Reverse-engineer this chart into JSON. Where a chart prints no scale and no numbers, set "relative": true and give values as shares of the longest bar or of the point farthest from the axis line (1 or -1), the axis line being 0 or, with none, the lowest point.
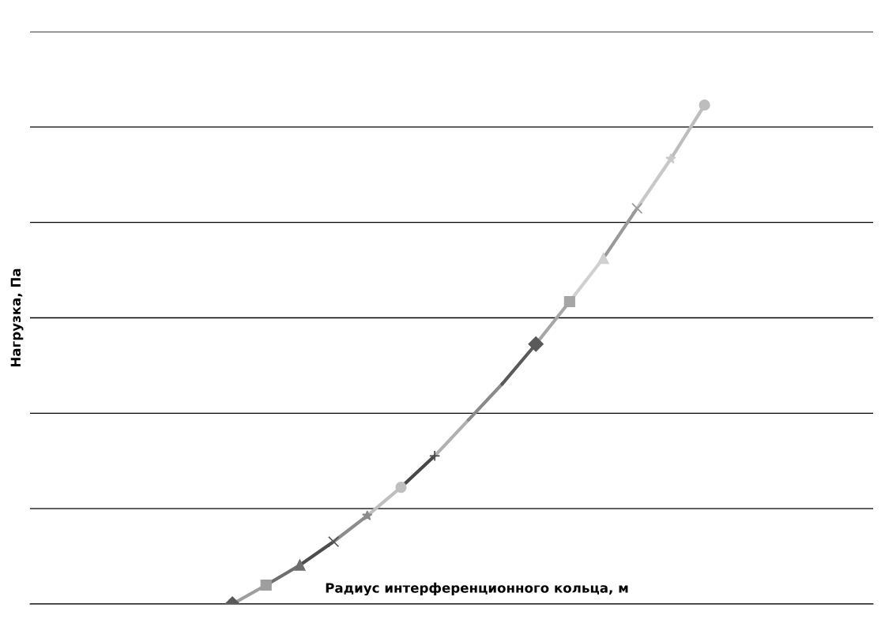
{
  "chart_data": {
    "type": "line",
    "relative": true,
    "xlabel": "Радиус интерференционного кольца, м",
    "ylabel": "Нагрузка, Па",
    "categories": [
      null,
      null,
      null,
      null,
      null,
      null,
      null,
      null,
      null,
      null,
      null,
      null,
      null,
      null,
      null,
      null,
      null,
      null,
      null,
      null,
      null,
      null,
      null,
      null,
      null,
      null
    ],
    "series": [
      {
        "color": "#595959",
        "marker": "diamond",
        "values": [
          null,
          null,
          null,
          null,
          null,
          null,
          0,
          null,
          null,
          null,
          null,
          null,
          null,
          null,
          null,
          null,
          null,
          null,
          null,
          null,
          null,
          null,
          null,
          null,
          null,
          null
        ]
      },
      {
        "color": "#9e9e9e",
        "marker": "square",
        "values": [
          null,
          null,
          null,
          null,
          null,
          null,
          0,
          0.038,
          null,
          null,
          null,
          null,
          null,
          null,
          null,
          null,
          null,
          null,
          null,
          null,
          null,
          null,
          null,
          null,
          null,
          null
        ]
      },
      {
        "color": "#6e6e6e",
        "marker": "triangle",
        "values": [
          null,
          null,
          null,
          null,
          null,
          null,
          null,
          0.038,
          0.078,
          null,
          null,
          null,
          null,
          null,
          null,
          null,
          null,
          null,
          null,
          null,
          null,
          null,
          null,
          null,
          null,
          null
        ]
      },
      {
        "color": "#4d4d4d",
        "marker": "cross",
        "values": [
          null,
          null,
          null,
          null,
          null,
          null,
          null,
          null,
          0.078,
          0.125,
          null,
          null,
          null,
          null,
          null,
          null,
          null,
          null,
          null,
          null,
          null,
          null,
          null,
          null,
          null,
          null
        ]
      },
      {
        "color": "#8c8c8c",
        "marker": "star",
        "values": [
          null,
          null,
          null,
          null,
          null,
          null,
          null,
          null,
          null,
          0.125,
          0.177,
          null,
          null,
          null,
          null,
          null,
          null,
          null,
          null,
          null,
          null,
          null,
          null,
          null,
          null,
          null
        ]
      },
      {
        "color": "#bfbfbf",
        "marker": "circle",
        "values": [
          null,
          null,
          null,
          null,
          null,
          null,
          null,
          null,
          null,
          null,
          0.177,
          0.234,
          null,
          null,
          null,
          null,
          null,
          null,
          null,
          null,
          null,
          null,
          null,
          null,
          null,
          null
        ]
      },
      {
        "color": "#474747",
        "marker": "plus",
        "values": [
          null,
          null,
          null,
          null,
          null,
          null,
          null,
          null,
          null,
          null,
          null,
          0.234,
          0.297,
          null,
          null,
          null,
          null,
          null,
          null,
          null,
          null,
          null,
          null,
          null,
          null,
          null
        ]
      },
      {
        "color": "#b0b0b0",
        "marker": "none",
        "values": [
          null,
          null,
          null,
          null,
          null,
          null,
          null,
          null,
          null,
          null,
          null,
          null,
          0.297,
          0.369,
          null,
          null,
          null,
          null,
          null,
          null,
          null,
          null,
          null,
          null,
          null,
          null
        ]
      },
      {
        "color": "#8a8a8a",
        "marker": "none",
        "values": [
          null,
          null,
          null,
          null,
          null,
          null,
          null,
          null,
          null,
          null,
          null,
          null,
          null,
          0.369,
          0.441,
          null,
          null,
          null,
          null,
          null,
          null,
          null,
          null,
          null,
          null,
          null
        ]
      },
      {
        "color": "#5a5a5a",
        "marker": "diamond",
        "values": [
          null,
          null,
          null,
          null,
          null,
          null,
          null,
          null,
          null,
          null,
          null,
          null,
          null,
          null,
          0.441,
          0.521,
          null,
          null,
          null,
          null,
          null,
          null,
          null,
          null,
          null,
          null
        ]
      },
      {
        "color": "#a6a6a6",
        "marker": "square",
        "values": [
          null,
          null,
          null,
          null,
          null,
          null,
          null,
          null,
          null,
          null,
          null,
          null,
          null,
          null,
          null,
          0.521,
          0.606,
          null,
          null,
          null,
          null,
          null,
          null,
          null,
          null,
          null
        ]
      },
      {
        "color": "#d0d0d0",
        "marker": "triangle",
        "values": [
          null,
          null,
          null,
          null,
          null,
          null,
          null,
          null,
          null,
          null,
          null,
          null,
          null,
          null,
          null,
          null,
          0.606,
          0.693,
          null,
          null,
          null,
          null,
          null,
          null,
          null,
          null
        ]
      },
      {
        "color": "#9a9a9a",
        "marker": "cross",
        "values": [
          null,
          null,
          null,
          null,
          null,
          null,
          null,
          null,
          null,
          null,
          null,
          null,
          null,
          null,
          null,
          null,
          null,
          0.693,
          0.793,
          null,
          null,
          null,
          null,
          null,
          null,
          null
        ]
      },
      {
        "color": "#c8c8c8",
        "marker": "star",
        "values": [
          null,
          null,
          null,
          null,
          null,
          null,
          null,
          null,
          null,
          null,
          null,
          null,
          null,
          null,
          null,
          null,
          null,
          null,
          0.793,
          0.892,
          null,
          null,
          null,
          null,
          null,
          null
        ]
      },
      {
        "color": "#bdbdbd",
        "marker": "circle",
        "values": [
          null,
          null,
          null,
          null,
          null,
          null,
          null,
          null,
          null,
          null,
          null,
          null,
          null,
          null,
          null,
          null,
          null,
          null,
          null,
          0.892,
          1.0,
          null,
          null,
          null,
          null,
          null
        ]
      }
    ],
    "grid": "y",
    "legend": false
  }
}
